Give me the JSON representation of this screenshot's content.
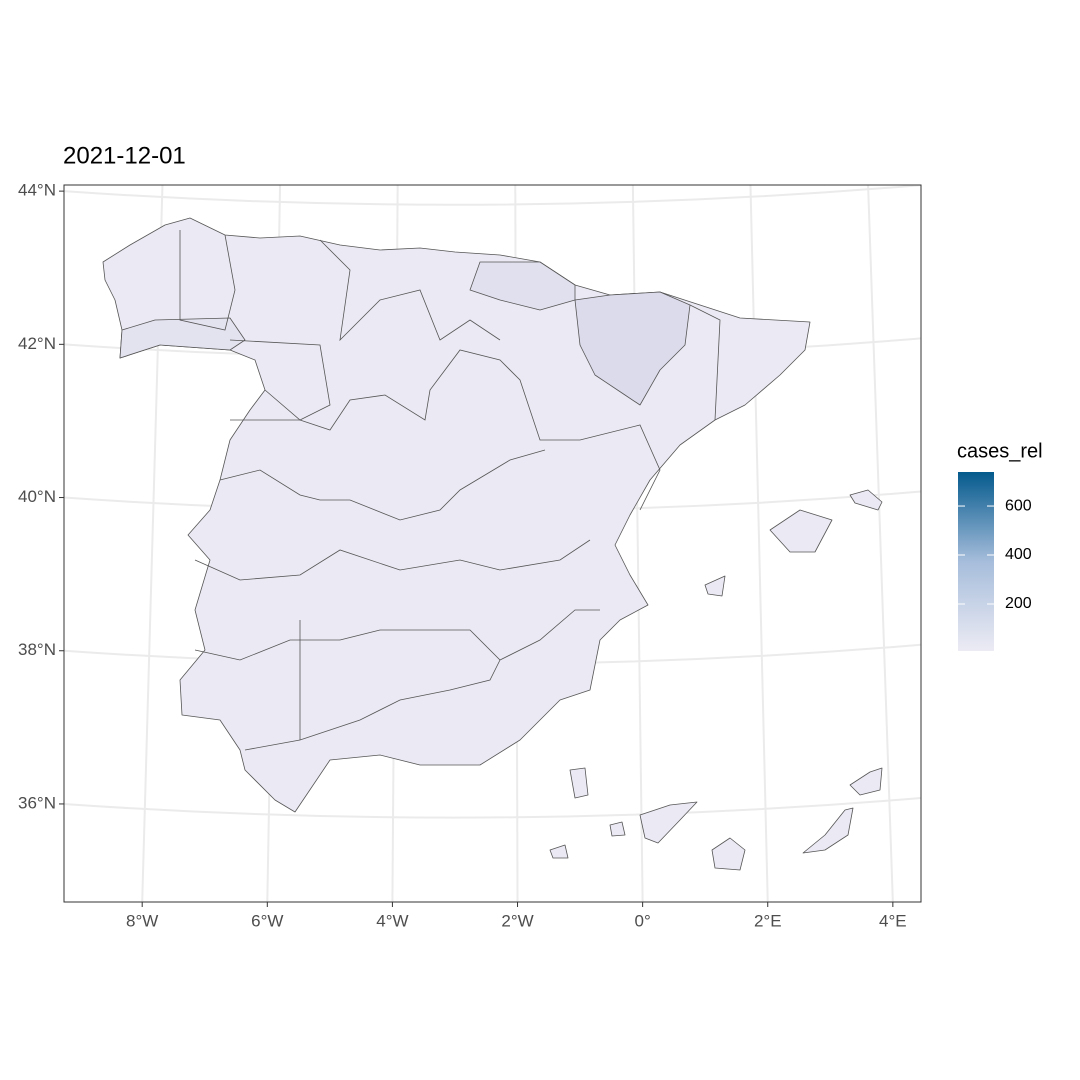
{
  "chart_data": {
    "type": "map",
    "title": "2021-12-01",
    "xlim": [
      -9.25,
      4.45
    ],
    "xticks": [
      {
        "value": -8,
        "label": "8°W"
      },
      {
        "value": -6,
        "label": "6°W"
      },
      {
        "value": -4,
        "label": "4°W"
      },
      {
        "value": -2,
        "label": "2°W"
      },
      {
        "value": 0,
        "label": "0°"
      },
      {
        "value": 2,
        "label": "2°E"
      },
      {
        "value": 4,
        "label": "4°E"
      }
    ],
    "ylim": [
      34.72,
      44.08
    ],
    "yticks": [
      {
        "value": 36,
        "label": "36°N"
      },
      {
        "value": 38,
        "label": "38°N"
      },
      {
        "value": 40,
        "label": "40°N"
      },
      {
        "value": 42,
        "label": "42°N"
      },
      {
        "value": 44,
        "label": "44°N"
      }
    ],
    "grid": true,
    "legend": {
      "title": "cases_rel",
      "lim": [
        8,
        739
      ],
      "ticks": [
        200,
        400,
        600
      ],
      "colors": [
        "#ecebf4",
        "#a6bddb",
        "#045a8d"
      ]
    }
  }
}
